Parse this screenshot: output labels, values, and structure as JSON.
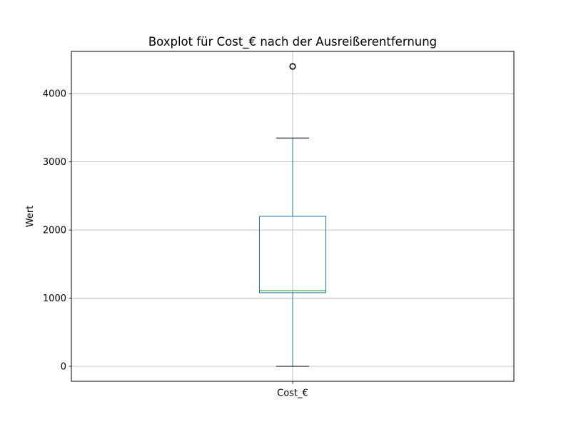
{
  "chart_data": {
    "type": "boxplot",
    "title": "Boxplot für Cost_€ nach der Ausreißerentfernung",
    "xlabel": "",
    "ylabel": "Wert",
    "categories": [
      "Cost_€"
    ],
    "boxes": [
      {
        "category": "Cost_€",
        "whisker_low": 0,
        "q1": 1080,
        "median": 1110,
        "q3": 2200,
        "whisker_high": 3350,
        "outliers": [
          4400
        ]
      }
    ],
    "ylim": [
      -220,
      4620
    ],
    "yticks": [
      0,
      1000,
      2000,
      3000,
      4000
    ],
    "grid": true,
    "colors": {
      "box": "#1f77b4",
      "median": "#2ca02c",
      "caps": "#000000",
      "grid": "#b0b0b0",
      "outlier_edge": "#000000"
    }
  }
}
